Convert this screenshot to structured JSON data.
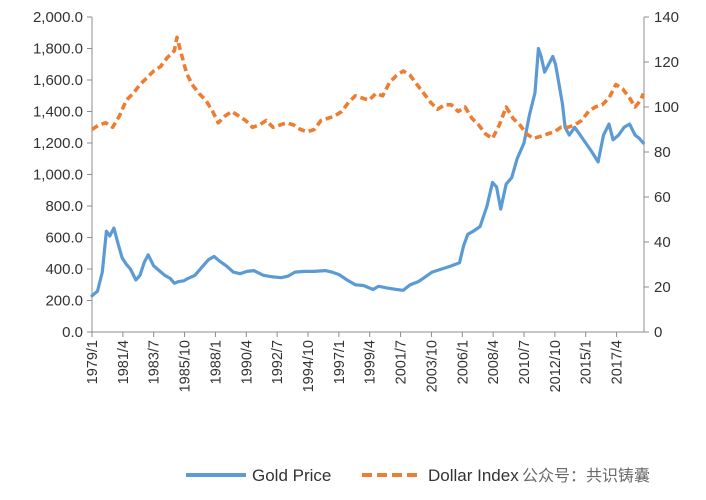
{
  "chart_data": {
    "type": "line",
    "title": "",
    "xlabel": "",
    "ylabel": "",
    "y2label": "",
    "grid": false,
    "legend_position": "bottom",
    "x_range": [
      1979.0,
      2019.25
    ],
    "ylim_left": [
      0,
      2000
    ],
    "ylim_right": [
      0,
      140
    ],
    "yticks_left": [
      "0.0",
      "200.0",
      "400.0",
      "600.0",
      "800.0",
      "1,000.0",
      "1,200.0",
      "1,400.0",
      "1,600.0",
      "1,800.0",
      "2,000.0"
    ],
    "yticks_right": [
      "0",
      "20",
      "40",
      "60",
      "80",
      "100",
      "120",
      "140"
    ],
    "xtick_labels": [
      "1979/1",
      "1981/4",
      "1983/7",
      "1985/10",
      "1988/1",
      "1990/4",
      "1992/7",
      "1994/10",
      "1997/1",
      "1999/4",
      "2001/7",
      "2003/10",
      "2006/1",
      "2008/4",
      "2010/7",
      "2012/10",
      "2015/1",
      "2017/4"
    ],
    "series": [
      {
        "name": "Gold Price",
        "axis": "left",
        "color": "#5b9bd5",
        "style": "solid",
        "x": [
          1979.0,
          1979.4,
          1979.75,
          1980.05,
          1980.3,
          1980.6,
          1980.9,
          1981.2,
          1981.5,
          1981.8,
          1982.2,
          1982.5,
          1982.8,
          1983.1,
          1983.5,
          1983.9,
          1984.3,
          1984.7,
          1985.0,
          1985.3,
          1985.7,
          1986.0,
          1986.5,
          1987.0,
          1987.5,
          1987.9,
          1988.3,
          1988.8,
          1989.3,
          1989.8,
          1990.3,
          1990.8,
          1991.5,
          1992.2,
          1992.8,
          1993.3,
          1993.8,
          1994.5,
          1995.2,
          1996.0,
          1996.5,
          1997.0,
          1997.6,
          1998.2,
          1998.8,
          1999.5,
          1999.9,
          2000.5,
          2001.2,
          2001.7,
          2002.2,
          2002.8,
          2003.3,
          2003.8,
          2004.5,
          2005.2,
          2005.8,
          2006.1,
          2006.4,
          2006.8,
          2007.3,
          2007.8,
          2008.2,
          2008.5,
          2008.8,
          2009.2,
          2009.6,
          2010.0,
          2010.5,
          2010.9,
          2011.3,
          2011.55,
          2011.75,
          2012.0,
          2012.3,
          2012.6,
          2012.8,
          2013.0,
          2013.3,
          2013.5,
          2013.8,
          2014.2,
          2014.6,
          2015.0,
          2015.4,
          2015.9,
          2016.3,
          2016.7,
          2017.0,
          2017.4,
          2017.8,
          2018.2,
          2018.6,
          2018.9,
          2019.2
        ],
        "values": [
          230,
          260,
          380,
          640,
          610,
          660,
          560,
          470,
          430,
          400,
          330,
          360,
          440,
          490,
          420,
          390,
          360,
          340,
          310,
          320,
          325,
          340,
          360,
          410,
          460,
          480,
          450,
          420,
          380,
          370,
          385,
          390,
          360,
          350,
          345,
          355,
          380,
          385,
          385,
          390,
          380,
          365,
          330,
          300,
          295,
          270,
          290,
          280,
          270,
          265,
          300,
          320,
          350,
          380,
          400,
          420,
          440,
          550,
          620,
          640,
          670,
          800,
          950,
          920,
          780,
          940,
          980,
          1100,
          1200,
          1380,
          1520,
          1800,
          1750,
          1650,
          1700,
          1750,
          1700,
          1600,
          1450,
          1300,
          1250,
          1300,
          1250,
          1200,
          1150,
          1080,
          1250,
          1320,
          1220,
          1250,
          1300,
          1320,
          1250,
          1230,
          1200
        ]
      },
      {
        "name": "Dollar Index",
        "axis": "right",
        "color": "#ed7d31",
        "style": "dashed",
        "x": [
          1979.0,
          1979.5,
          1980.0,
          1980.5,
          1981.0,
          1981.5,
          1982.0,
          1982.5,
          1983.0,
          1983.5,
          1984.0,
          1984.5,
          1985.0,
          1985.2,
          1985.5,
          1985.9,
          1986.3,
          1986.8,
          1987.3,
          1987.8,
          1988.2,
          1988.7,
          1989.2,
          1989.7,
          1990.2,
          1990.7,
          1991.2,
          1991.7,
          1992.2,
          1992.7,
          1993.2,
          1993.7,
          1994.2,
          1994.7,
          1995.2,
          1995.7,
          1996.2,
          1996.7,
          1997.2,
          1997.7,
          1998.2,
          1998.7,
          1999.2,
          1999.7,
          2000.2,
          2000.7,
          2001.2,
          2001.7,
          2002.2,
          2002.7,
          2003.2,
          2003.7,
          2004.2,
          2004.7,
          2005.2,
          2005.7,
          2006.2,
          2006.7,
          2007.2,
          2007.7,
          2008.2,
          2008.7,
          2009.2,
          2009.7,
          2010.2,
          2010.7,
          2011.2,
          2011.7,
          2012.2,
          2012.7,
          2013.2,
          2013.7,
          2014.2,
          2014.7,
          2015.2,
          2015.7,
          2016.2,
          2016.7,
          2017.2,
          2017.7,
          2018.2,
          2018.6,
          2019.0,
          2019.2
        ],
        "values": [
          90,
          92,
          93,
          91,
          96,
          103,
          106,
          110,
          113,
          116,
          118,
          122,
          125,
          131,
          124,
          115,
          110,
          106,
          103,
          98,
          93,
          96,
          98,
          96,
          94,
          91,
          92,
          94,
          91,
          92,
          93,
          92,
          90,
          89,
          90,
          94,
          95,
          96,
          98,
          102,
          105,
          104,
          103,
          106,
          105,
          111,
          114,
          116,
          114,
          110,
          106,
          102,
          99,
          101,
          101,
          98,
          100,
          95,
          92,
          88,
          86,
          92,
          100,
          95,
          92,
          88,
          86,
          87,
          88,
          89,
          91,
          91,
          92,
          94,
          98,
          100,
          101,
          104,
          110,
          108,
          104,
          100,
          103,
          106
        ]
      }
    ]
  },
  "watermark": "公众号：共识铸囊"
}
